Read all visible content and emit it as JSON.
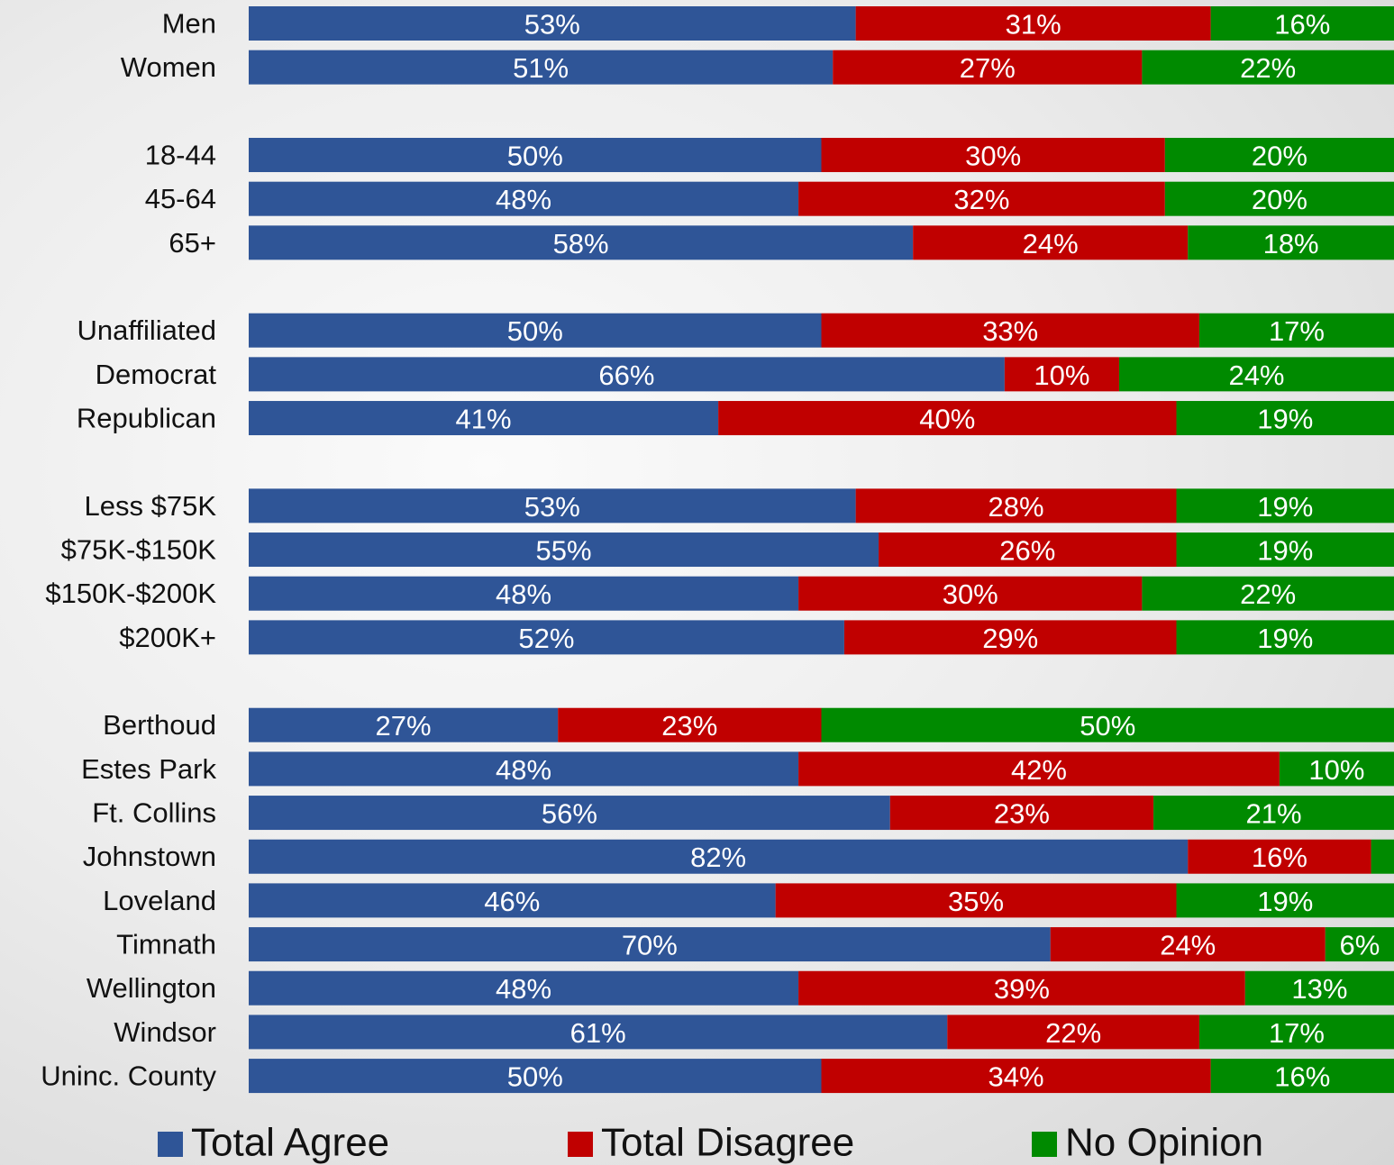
{
  "chart_data": {
    "type": "stacked-barh",
    "categories": [
      "Men",
      "Women",
      null,
      "18-44",
      "45-64",
      "65+",
      null,
      "Unaffiliated",
      "Democrat",
      "Republican",
      null,
      "Less $75K",
      "$75K-$150K",
      "$150K-$200K",
      "$200K+",
      null,
      "Berthoud",
      "Estes Park",
      "Ft. Collins",
      "Johnstown",
      "Loveland",
      "Timnath",
      "Wellington",
      "Windsor",
      "Uninc. County"
    ],
    "series": [
      {
        "name": "Total Agree",
        "color": "#2f5597",
        "values": [
          53,
          51,
          null,
          50,
          48,
          58,
          null,
          50,
          66,
          41,
          null,
          53,
          55,
          48,
          52,
          null,
          27,
          48,
          56,
          82,
          46,
          70,
          48,
          61,
          50
        ],
        "value_labels": [
          "53%",
          "51%",
          null,
          "50%",
          "48%",
          "58%",
          null,
          "50%",
          "66%",
          "41%",
          null,
          "53%",
          "55%",
          "48%",
          "52%",
          null,
          "27%",
          "48%",
          "56%",
          "82%",
          "46%",
          "70%",
          "48%",
          "61%",
          "50%"
        ]
      },
      {
        "name": "Total Disagree",
        "color": "#c00000",
        "values": [
          31,
          27,
          null,
          30,
          32,
          24,
          null,
          33,
          10,
          40,
          null,
          28,
          26,
          30,
          29,
          null,
          23,
          42,
          23,
          16,
          35,
          24,
          39,
          22,
          34
        ],
        "value_labels": [
          "31%",
          "27%",
          null,
          "30%",
          "32%",
          "24%",
          null,
          "33%",
          "10%",
          "40%",
          null,
          "28%",
          "26%",
          "30%",
          "29%",
          null,
          "23%",
          "42%",
          "23%",
          "16%",
          "35%",
          "24%",
          "39%",
          "22%",
          "34%"
        ]
      },
      {
        "name": "No Opinion",
        "color": "#008a00",
        "values": [
          16,
          22,
          null,
          20,
          20,
          18,
          null,
          17,
          24,
          19,
          null,
          19,
          19,
          22,
          19,
          null,
          50,
          10,
          21,
          2,
          19,
          6,
          13,
          17,
          16
        ],
        "value_labels": [
          "16%",
          "22%",
          null,
          "20%",
          "20%",
          "18%",
          null,
          "17%",
          "24%",
          "19%",
          null,
          "19%",
          "19%",
          "22%",
          "19%",
          null,
          "50%",
          "10%",
          "21%",
          null,
          "19%",
          "6%",
          "13%",
          "17%",
          "16%"
        ]
      }
    ],
    "xlim": [
      0,
      100
    ],
    "legend": "bottom"
  }
}
